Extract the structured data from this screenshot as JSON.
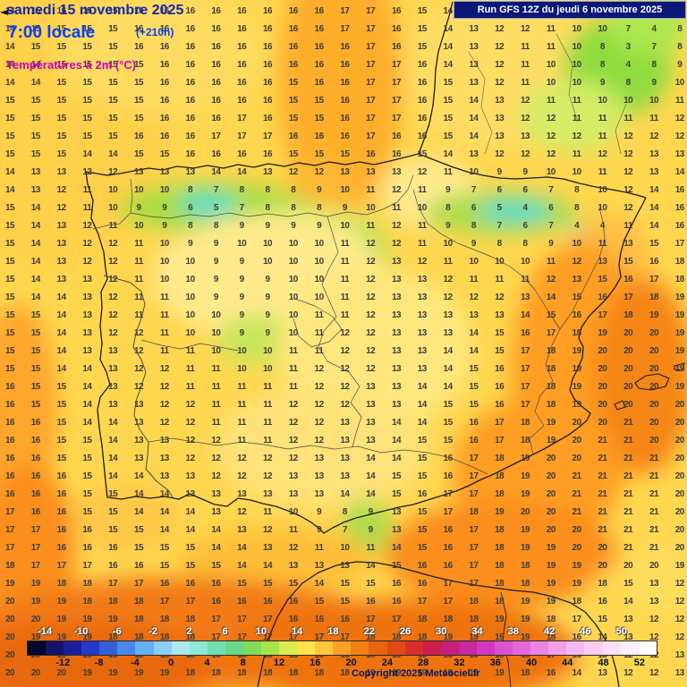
{
  "header": {
    "date": "samedi 15 novembre 2025",
    "time": "7:00 locale",
    "offset": "(+210h)",
    "parameter": "Températures à 2m (°C)",
    "run": "Run GFS 12Z du jeudi 6 novembre 2025"
  },
  "nav": {
    "prev_arrow": "◄"
  },
  "footer": {
    "copyright": "Copyright 2025 Meteociel.fr"
  },
  "colors": {
    "date_text": "#1428B4",
    "time_text": "#0540FF",
    "parameter_text": "#C800C8",
    "run_box_bg": "#0A1878",
    "run_box_text": "#FFFFFF",
    "number_text": "#3D3D3D",
    "base_map": "#FFD74F"
  },
  "scale": {
    "min": -16,
    "max": 54,
    "step": 2,
    "segments": [
      "#06062E",
      "#14146A",
      "#1E1E9A",
      "#2838C8",
      "#3260DC",
      "#4688EC",
      "#64B0F4",
      "#8CD0F8",
      "#AAE8F0",
      "#8CE8D2",
      "#6EE0B4",
      "#66DC8A",
      "#7EDE58",
      "#A8E44E",
      "#D8EC50",
      "#FFE44C",
      "#FFC83C",
      "#FFA028",
      "#F58014",
      "#E86410",
      "#E04A18",
      "#D83028",
      "#CC1E4A",
      "#C81E78",
      "#C828A0",
      "#D238C0",
      "#DC50D2",
      "#E468DC",
      "#EC84E4",
      "#F0A0EA",
      "#F4B8F0",
      "#F8CCF4",
      "#FBDEF8",
      "#FDEFFB",
      "#FFFFFF"
    ],
    "top_labels": [
      -14,
      -10,
      -6,
      -2,
      2,
      6,
      10,
      14,
      18,
      22,
      26,
      30,
      34,
      38,
      42,
      46,
      50
    ],
    "bottom_labels": [
      -12,
      -8,
      -4,
      0,
      4,
      8,
      12,
      16,
      20,
      24,
      28,
      32,
      36,
      40,
      44,
      48,
      52
    ]
  },
  "grid": {
    "rows": 38,
    "cols": 27,
    "values": [
      [
        14,
        15,
        16,
        15,
        15,
        16,
        16,
        16,
        16,
        16,
        16,
        16,
        16,
        17,
        17,
        16,
        15,
        14,
        13,
        13,
        12,
        12,
        11,
        11,
        10,
        9,
        12
      ],
      [
        14,
        15,
        15,
        15,
        15,
        16,
        16,
        16,
        16,
        16,
        16,
        16,
        16,
        17,
        17,
        16,
        15,
        14,
        13,
        12,
        12,
        11,
        10,
        10,
        7,
        4,
        8
      ],
      [
        14,
        15,
        15,
        15,
        15,
        16,
        16,
        16,
        16,
        16,
        16,
        16,
        16,
        16,
        17,
        16,
        15,
        14,
        13,
        12,
        11,
        11,
        10,
        8,
        3,
        7,
        8
      ],
      [
        14,
        14,
        15,
        15,
        15,
        15,
        16,
        16,
        16,
        16,
        16,
        16,
        16,
        16,
        17,
        17,
        16,
        14,
        13,
        12,
        11,
        10,
        10,
        8,
        4,
        8,
        9
      ],
      [
        14,
        14,
        15,
        15,
        15,
        15,
        16,
        16,
        16,
        16,
        16,
        15,
        16,
        16,
        17,
        17,
        16,
        15,
        13,
        12,
        11,
        10,
        10,
        9,
        8,
        9,
        10
      ],
      [
        15,
        15,
        15,
        15,
        15,
        15,
        16,
        16,
        16,
        16,
        16,
        15,
        15,
        16,
        17,
        17,
        16,
        15,
        14,
        13,
        12,
        11,
        11,
        10,
        10,
        10,
        11
      ],
      [
        15,
        15,
        15,
        15,
        15,
        15,
        16,
        16,
        16,
        17,
        16,
        15,
        15,
        16,
        17,
        17,
        16,
        15,
        14,
        13,
        12,
        12,
        11,
        11,
        11,
        11,
        12
      ],
      [
        15,
        15,
        15,
        15,
        15,
        16,
        16,
        16,
        17,
        17,
        17,
        16,
        16,
        16,
        17,
        16,
        16,
        15,
        14,
        13,
        13,
        12,
        12,
        11,
        12,
        12,
        12
      ],
      [
        15,
        15,
        15,
        14,
        14,
        15,
        15,
        16,
        16,
        16,
        16,
        15,
        15,
        15,
        16,
        16,
        15,
        14,
        13,
        12,
        12,
        12,
        11,
        12,
        12,
        13,
        13
      ],
      [
        14,
        13,
        13,
        12,
        12,
        13,
        13,
        13,
        14,
        14,
        13,
        12,
        12,
        13,
        13,
        13,
        12,
        11,
        10,
        9,
        9,
        10,
        10,
        11,
        12,
        13,
        14
      ],
      [
        14,
        13,
        12,
        11,
        10,
        10,
        10,
        8,
        7,
        8,
        8,
        8,
        9,
        10,
        11,
        12,
        11,
        9,
        7,
        6,
        6,
        7,
        8,
        10,
        12,
        14,
        16
      ],
      [
        15,
        14,
        12,
        11,
        10,
        9,
        9,
        6,
        5,
        7,
        8,
        8,
        8,
        9,
        10,
        11,
        10,
        8,
        6,
        5,
        4,
        6,
        8,
        10,
        12,
        14,
        16
      ],
      [
        15,
        14,
        13,
        12,
        11,
        10,
        9,
        8,
        8,
        9,
        9,
        9,
        9,
        10,
        11,
        12,
        11,
        9,
        8,
        7,
        6,
        7,
        4,
        4,
        11,
        14,
        16
      ],
      [
        15,
        14,
        13,
        12,
        12,
        11,
        10,
        9,
        9,
        10,
        10,
        10,
        10,
        11,
        12,
        12,
        11,
        10,
        9,
        8,
        8,
        9,
        10,
        11,
        13,
        15,
        17
      ],
      [
        15,
        14,
        13,
        12,
        12,
        11,
        10,
        10,
        9,
        9,
        10,
        10,
        10,
        11,
        12,
        13,
        12,
        11,
        10,
        10,
        10,
        11,
        12,
        13,
        15,
        16,
        18
      ],
      [
        15,
        14,
        13,
        13,
        12,
        11,
        10,
        10,
        9,
        9,
        9,
        10,
        10,
        11,
        12,
        13,
        13,
        12,
        11,
        11,
        11,
        12,
        13,
        15,
        16,
        17,
        18
      ],
      [
        15,
        14,
        14,
        13,
        12,
        11,
        11,
        10,
        9,
        9,
        9,
        10,
        10,
        11,
        12,
        13,
        13,
        12,
        12,
        12,
        13,
        14,
        15,
        16,
        17,
        18,
        19
      ],
      [
        15,
        15,
        14,
        13,
        12,
        11,
        11,
        10,
        10,
        9,
        9,
        10,
        11,
        11,
        12,
        13,
        13,
        13,
        13,
        13,
        14,
        15,
        16,
        17,
        18,
        19,
        19
      ],
      [
        15,
        15,
        14,
        13,
        12,
        12,
        11,
        10,
        10,
        9,
        9,
        10,
        11,
        12,
        12,
        13,
        13,
        13,
        14,
        15,
        16,
        17,
        18,
        19,
        20,
        20,
        19
      ],
      [
        15,
        15,
        14,
        13,
        13,
        12,
        11,
        11,
        10,
        10,
        10,
        11,
        11,
        12,
        12,
        13,
        13,
        14,
        14,
        15,
        17,
        18,
        19,
        20,
        20,
        20,
        19
      ],
      [
        15,
        15,
        14,
        14,
        13,
        12,
        12,
        11,
        11,
        10,
        10,
        11,
        12,
        12,
        12,
        13,
        13,
        14,
        15,
        16,
        17,
        18,
        19,
        20,
        20,
        20,
        19
      ],
      [
        16,
        15,
        15,
        14,
        13,
        12,
        12,
        11,
        11,
        11,
        11,
        11,
        12,
        12,
        13,
        13,
        14,
        14,
        15,
        16,
        17,
        18,
        19,
        20,
        20,
        20,
        19
      ],
      [
        16,
        15,
        15,
        14,
        13,
        13,
        12,
        12,
        11,
        11,
        11,
        12,
        12,
        12,
        13,
        13,
        14,
        15,
        15,
        16,
        17,
        18,
        19,
        20,
        20,
        20,
        20
      ],
      [
        16,
        16,
        15,
        14,
        14,
        13,
        12,
        12,
        11,
        11,
        11,
        12,
        12,
        13,
        13,
        14,
        14,
        15,
        16,
        17,
        18,
        19,
        20,
        20,
        21,
        20,
        20
      ],
      [
        16,
        16,
        15,
        15,
        14,
        13,
        13,
        12,
        12,
        11,
        11,
        12,
        12,
        13,
        13,
        14,
        15,
        15,
        16,
        17,
        18,
        19,
        20,
        21,
        21,
        20,
        20
      ],
      [
        16,
        16,
        15,
        15,
        14,
        13,
        13,
        12,
        12,
        12,
        12,
        12,
        13,
        13,
        14,
        14,
        15,
        16,
        17,
        18,
        19,
        20,
        20,
        21,
        21,
        21,
        20
      ],
      [
        16,
        16,
        16,
        15,
        14,
        14,
        13,
        13,
        12,
        12,
        12,
        13,
        13,
        13,
        14,
        15,
        15,
        16,
        17,
        18,
        19,
        20,
        21,
        21,
        21,
        21,
        20
      ],
      [
        16,
        16,
        16,
        15,
        15,
        14,
        14,
        13,
        13,
        13,
        13,
        13,
        13,
        14,
        14,
        15,
        16,
        17,
        17,
        18,
        19,
        20,
        21,
        21,
        21,
        21,
        20
      ],
      [
        17,
        16,
        16,
        15,
        15,
        14,
        14,
        14,
        13,
        12,
        11,
        10,
        9,
        8,
        9,
        13,
        15,
        17,
        18,
        19,
        20,
        20,
        21,
        21,
        21,
        21,
        20
      ],
      [
        17,
        17,
        16,
        16,
        15,
        15,
        14,
        14,
        14,
        13,
        12,
        11,
        9,
        7,
        9,
        13,
        15,
        16,
        17,
        18,
        19,
        20,
        20,
        21,
        21,
        21,
        20
      ],
      [
        17,
        17,
        16,
        16,
        16,
        15,
        15,
        15,
        14,
        14,
        13,
        12,
        11,
        10,
        11,
        14,
        15,
        16,
        17,
        18,
        19,
        19,
        20,
        20,
        21,
        21,
        20
      ],
      [
        18,
        17,
        17,
        17,
        16,
        16,
        15,
        15,
        15,
        14,
        14,
        13,
        13,
        13,
        14,
        15,
        16,
        16,
        17,
        18,
        18,
        19,
        19,
        20,
        20,
        20,
        19
      ],
      [
        19,
        19,
        18,
        18,
        17,
        17,
        16,
        16,
        16,
        15,
        15,
        15,
        14,
        15,
        15,
        16,
        16,
        17,
        17,
        18,
        18,
        19,
        19,
        18,
        15,
        13,
        12
      ],
      [
        20,
        19,
        19,
        18,
        18,
        18,
        17,
        17,
        16,
        16,
        16,
        16,
        15,
        15,
        16,
        16,
        17,
        17,
        18,
        18,
        19,
        19,
        18,
        16,
        14,
        13,
        12
      ],
      [
        20,
        20,
        19,
        19,
        19,
        18,
        18,
        18,
        17,
        17,
        17,
        16,
        16,
        16,
        17,
        17,
        18,
        18,
        18,
        19,
        19,
        18,
        17,
        15,
        13,
        12,
        12
      ],
      [
        20,
        19,
        19,
        19,
        18,
        18,
        18,
        18,
        17,
        17,
        17,
        17,
        17,
        17,
        18,
        18,
        18,
        19,
        19,
        19,
        19,
        18,
        16,
        14,
        13,
        12,
        12
      ],
      [
        20,
        20,
        19,
        19,
        19,
        19,
        18,
        18,
        18,
        18,
        18,
        18,
        18,
        18,
        18,
        19,
        19,
        19,
        19,
        19,
        18,
        17,
        15,
        13,
        12,
        12,
        13
      ],
      [
        20,
        20,
        20,
        19,
        19,
        19,
        19,
        18,
        18,
        18,
        18,
        18,
        18,
        18,
        19,
        19,
        19,
        19,
        19,
        19,
        18,
        16,
        14,
        13,
        12,
        12,
        13
      ]
    ]
  }
}
